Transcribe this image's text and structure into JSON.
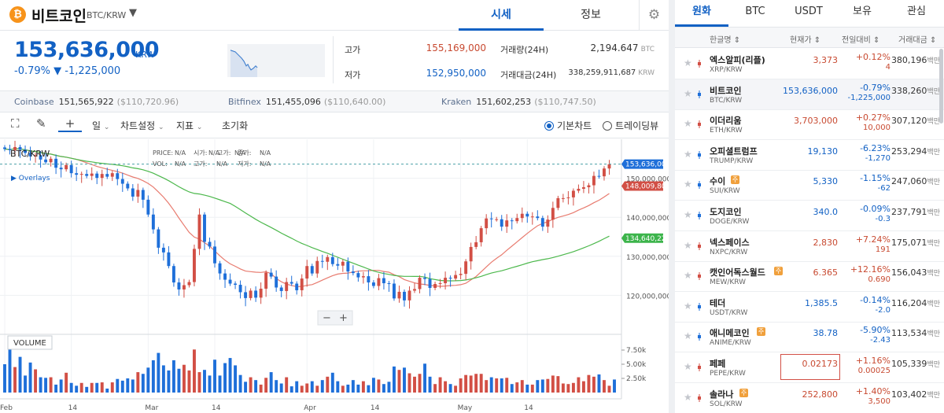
{
  "header": {
    "coin_name": "비트코인",
    "coin_symbol_glyph": "₿",
    "pair": "BTC/KRW",
    "tabs": [
      "시세",
      "정보"
    ],
    "active_tab": 0
  },
  "price": {
    "current": "153,636,000",
    "unit": "KRW",
    "change_rate": "-0.79%",
    "change_arrow": "▼",
    "change_amount": "-1,225,000",
    "high_label": "고가",
    "high": "155,169,000",
    "low_label": "저가",
    "low": "152,950,000",
    "volume_label": "거래량(24H)",
    "volume": "2,194.647",
    "volume_unit": "BTC",
    "trade_value_label": "거래대금(24H)",
    "trade_value": "338,259,911,687",
    "trade_value_unit": "KRW"
  },
  "exchanges": [
    {
      "name": "Coinbase",
      "price": "151,565,922",
      "usd": "($110,720.96)"
    },
    {
      "name": "Bitfinex",
      "price": "151,455,096",
      "usd": "($110,640.00)"
    },
    {
      "name": "Kraken",
      "price": "151,602,253",
      "usd": "($110,747.50)"
    }
  ],
  "toolbar": {
    "interval": "일",
    "chart_settings": "차트설정",
    "indicators": "지표",
    "reset": "초기화",
    "basic_chart": "기본차트",
    "trading_view": "트레이딩뷰"
  },
  "chart_data": {
    "type": "candlestick",
    "title": "BTC/KRW",
    "legend_price": {
      "PRICE": "N/A",
      "시가": "N/A",
      "고가": "N/A",
      "종가": "N/A"
    },
    "legend_vol": {
      "VOL": "N/A",
      "고가": "N/A",
      "저가": "N/A"
    },
    "overlay_label": "Overlays",
    "volume_label": "VOLUME",
    "ylim": [
      110000000,
      160000000
    ],
    "y_ticks": [
      "150,000,000",
      "140,000,000",
      "130,000,000",
      "120,000,000"
    ],
    "y_tick_values": [
      150000000,
      140000000,
      130000000,
      120000000
    ],
    "vol_ticks": [
      "7.50k",
      "5.00k",
      "2.50k"
    ],
    "vol_tick_values": [
      7500,
      5000,
      2500
    ],
    "vol_max": 10000,
    "x_labels": [
      "Feb",
      "14",
      "Mar",
      "14",
      "Apr",
      "14",
      "May",
      "14"
    ],
    "x_label_days": [
      0,
      13,
      28,
      41,
      59,
      72,
      89,
      102
    ],
    "markers": [
      {
        "label": "153,636,000",
        "value": 153636000,
        "color": "#1e6fd9"
      },
      {
        "label": "148,009,800",
        "value": 148009800,
        "color": "#d24f45"
      },
      {
        "label": "134,640,220",
        "value": 134640220,
        "color": "#3cb44b"
      }
    ],
    "closes": [
      157.5,
      157.2,
      158.0,
      157.3,
      156.5,
      155.6,
      155.9,
      154.8,
      154.1,
      155.0,
      152.7,
      152.3,
      153.4,
      151.3,
      150.9,
      151.1,
      150.6,
      151.2,
      150.1,
      151.1,
      150.4,
      151.3,
      149.8,
      148.6,
      147.4,
      145.3,
      147.0,
      144.5,
      140.7,
      136.9,
      132.2,
      131.0,
      127.5,
      123.3,
      121.5,
      122.6,
      123.4,
      131.9,
      140.7,
      133.7,
      132.5,
      128.2,
      125.6,
      124.0,
      123.0,
      122.7,
      120.8,
      119.3,
      121.2,
      119.4,
      121.7,
      125.8,
      124.8,
      122.0,
      121.1,
      123.4,
      123.0,
      121.3,
      124.3,
      127.5,
      125.6,
      128.8,
      128.6,
      129.8,
      128.0,
      127.6,
      128.6,
      126.1,
      125.7,
      124.6,
      124.9,
      123.3,
      122.4,
      124.4,
      123.1,
      123.0,
      119.2,
      120.9,
      118.7,
      121.2,
      121.6,
      124.5,
      124.2,
      121.9,
      122.9,
      123.1,
      124.5,
      124.3,
      125.2,
      125.5,
      128.7,
      132.4,
      133.6,
      137.2,
      139.7,
      139.5,
      139.5,
      137.6,
      139.2,
      139.0,
      139.8,
      140.9,
      140.2,
      140.2,
      139.8,
      137.6,
      139.4,
      142.4,
      144.9,
      144.9,
      145.1,
      146.8,
      147.3,
      147.7,
      148.2,
      150.6,
      150.5,
      152.5,
      153.6
    ],
    "volumes": [
      5000,
      9200,
      4500,
      6300,
      3000,
      5300,
      4100,
      2700,
      2600,
      2700,
      1400,
      2300,
      3500,
      1700,
      1200,
      1700,
      1000,
      1700,
      1700,
      1800,
      700,
      1800,
      2400,
      2100,
      2500,
      2300,
      3600,
      3300,
      4400,
      5700,
      7000,
      4800,
      3900,
      5700,
      4200,
      4900,
      3900,
      7600,
      3600,
      4000,
      3000,
      5800,
      3000,
      5200,
      6100,
      4800,
      3100,
      1900,
      2700,
      2200,
      1400,
      2600,
      3600,
      2200,
      1600,
      2700,
      1100,
      2000,
      1200,
      1600,
      2000,
      1200,
      2200,
      2800,
      3500,
      2000,
      1200,
      1400,
      2200,
      1400,
      2000,
      1300,
      2600,
      2300,
      1500,
      1900,
      4600,
      4000,
      4400,
      3400,
      2800,
      3300,
      5100,
      2800,
      1500,
      2700,
      2000,
      1500,
      1200,
      2500,
      3100,
      3000,
      3300,
      3300,
      2200,
      2700,
      2500,
      2500,
      2600,
      1500,
      1800,
      2200,
      1400,
      1400,
      2200,
      2300,
      2400,
      3000,
      2900,
      1600,
      1500,
      1700,
      2700,
      2000,
      3100,
      2800,
      3200,
      2200,
      1200,
      2300
    ]
  },
  "market": {
    "tabs": [
      "원화",
      "BTC",
      "USDT",
      "보유",
      "관심"
    ],
    "active_tab": 0,
    "columns": [
      "한글명 ⇕",
      "현재가 ⇕",
      "전일대비 ⇕",
      "거래대금 ⇕"
    ],
    "rows": [
      {
        "name": "엑스알피(리플)",
        "pair": "XRP/KRW",
        "price": "3,373",
        "rate": "+0.12%",
        "amt": "4",
        "vol": "380,196",
        "unit": "백만",
        "dir": "up",
        "warn": false
      },
      {
        "name": "비트코인",
        "pair": "BTC/KRW",
        "price": "153,636,000",
        "rate": "-0.79%",
        "amt": "-1,225,000",
        "vol": "338,260",
        "unit": "백만",
        "dir": "dn",
        "warn": false
      },
      {
        "name": "이더리움",
        "pair": "ETH/KRW",
        "price": "3,703,000",
        "rate": "+0.27%",
        "amt": "10,000",
        "vol": "307,120",
        "unit": "백만",
        "dir": "up",
        "warn": false
      },
      {
        "name": "오피셜트럼프",
        "pair": "TRUMP/KRW",
        "price": "19,130",
        "rate": "-6.23%",
        "amt": "-1,270",
        "vol": "253,294",
        "unit": "백만",
        "dir": "dn",
        "warn": false
      },
      {
        "name": "수이",
        "pair": "SUI/KRW",
        "price": "5,330",
        "rate": "-1.15%",
        "amt": "-62",
        "vol": "247,060",
        "unit": "백만",
        "dir": "dn",
        "warn": true
      },
      {
        "name": "도지코인",
        "pair": "DOGE/KRW",
        "price": "340.0",
        "rate": "-0.09%",
        "amt": "-0.3",
        "vol": "237,791",
        "unit": "백만",
        "dir": "dn",
        "warn": false
      },
      {
        "name": "넥스페이스",
        "pair": "NXPC/KRW",
        "price": "2,830",
        "rate": "+7.24%",
        "amt": "191",
        "vol": "175,071",
        "unit": "백만",
        "dir": "up",
        "warn": false
      },
      {
        "name": "캣인어독스월드",
        "pair": "MEW/KRW",
        "price": "6.365",
        "rate": "+12.16%",
        "amt": "0.690",
        "vol": "156,043",
        "unit": "백만",
        "dir": "up",
        "warn": true
      },
      {
        "name": "테더",
        "pair": "USDT/KRW",
        "price": "1,385.5",
        "rate": "-0.14%",
        "amt": "-2.0",
        "vol": "116,204",
        "unit": "백만",
        "dir": "dn",
        "warn": false
      },
      {
        "name": "애니메코인",
        "pair": "ANIME/KRW",
        "price": "38.78",
        "rate": "-5.90%",
        "amt": "-2.43",
        "vol": "113,534",
        "unit": "백만",
        "dir": "dn",
        "warn": true
      },
      {
        "name": "페페",
        "pair": "PEPE/KRW",
        "price": "0.02173",
        "rate": "+1.16%",
        "amt": "0.00025",
        "vol": "105,339",
        "unit": "백만",
        "dir": "up",
        "warn": false
      },
      {
        "name": "솔라나",
        "pair": "SOL/KRW",
        "price": "252,800",
        "rate": "+1.40%",
        "amt": "3,500",
        "vol": "103,402",
        "unit": "백만",
        "dir": "up",
        "warn": true
      }
    ]
  },
  "colors": {
    "up": "#c84a31",
    "down": "#1261c4",
    "candle_up": "#d24f45",
    "candle_down": "#1e6fd9",
    "ma_short": "#e87b6f",
    "ma_long": "#4cb84c"
  }
}
